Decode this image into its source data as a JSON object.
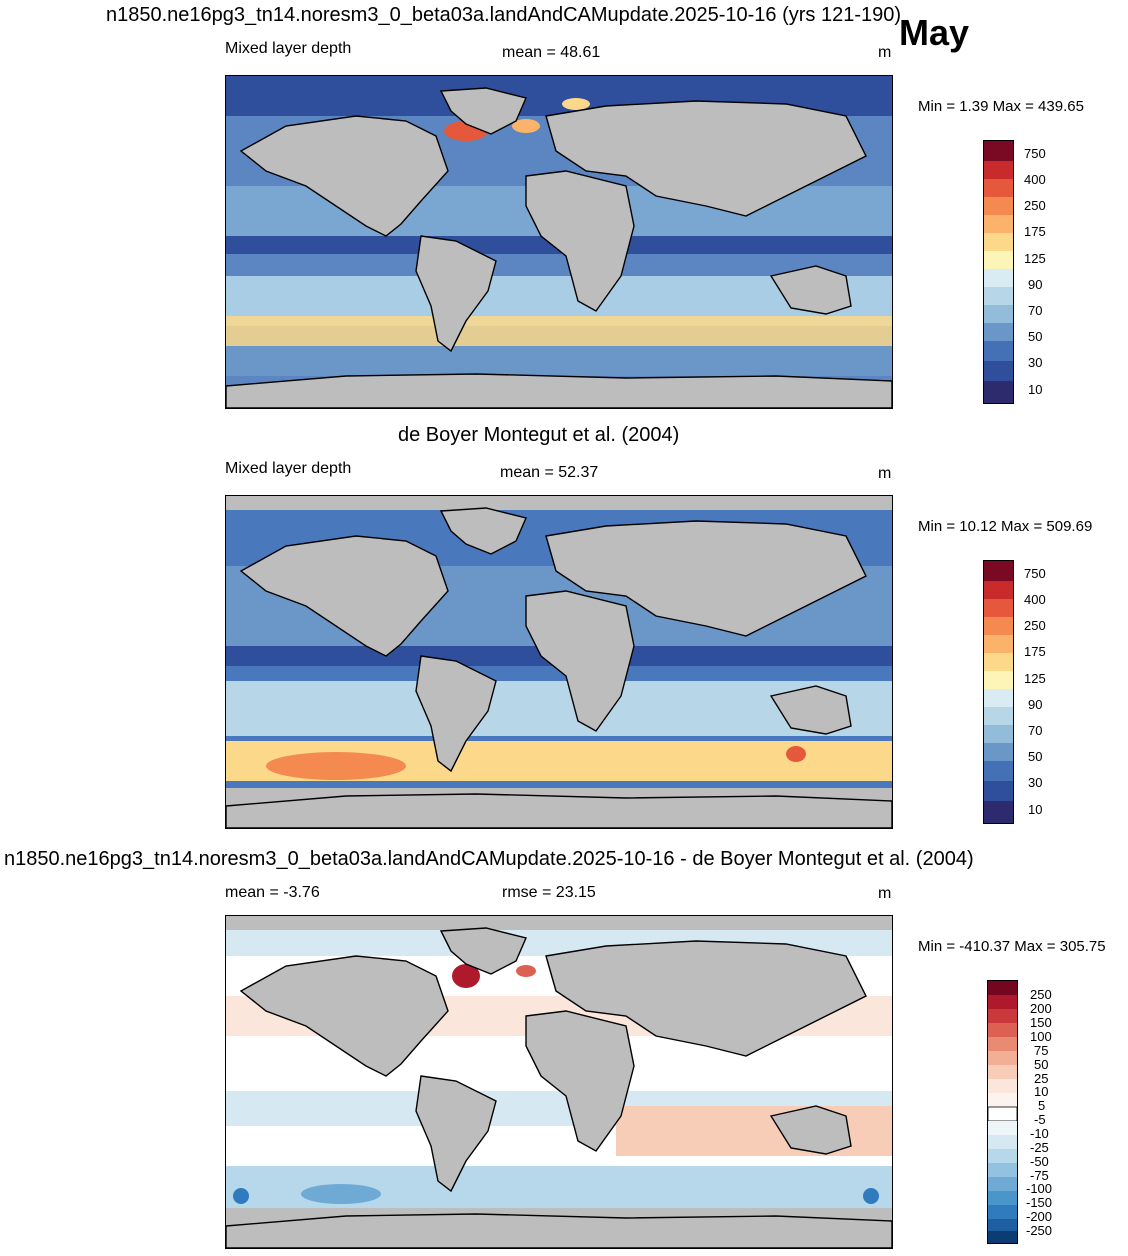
{
  "header": {
    "main_title": "n1850.ne16pg3_tn14.noresm3_0_beta03a.landAndCAMupdate.2025-10-16 (yrs 121-190)",
    "month": "May"
  },
  "panels": [
    {
      "id": "model",
      "left_label": "Mixed layer depth",
      "center_label": "mean =  48.61",
      "units": "m",
      "min_max": "Min =   1.39 Max = 439.65",
      "colorbar_labels": [
        "750",
        "400",
        "250",
        "175",
        "125",
        "90",
        "70",
        "50",
        "30",
        "10"
      ]
    },
    {
      "id": "obs",
      "title": "de Boyer Montegut et al. (2004)",
      "left_label": "Mixed layer depth",
      "center_label": "mean =  52.37",
      "units": "m",
      "min_max": "Min =  10.12 Max = 509.69",
      "colorbar_labels": [
        "750",
        "400",
        "250",
        "175",
        "125",
        "90",
        "70",
        "50",
        "30",
        "10"
      ]
    },
    {
      "id": "diff",
      "title": "n1850.ne16pg3_tn14.noresm3_0_beta03a.landAndCAMupdate.2025-10-16 - de Boyer Montegut et al. (2004)",
      "left_label": "mean =  -3.76",
      "center_label": "rmse =  23.15",
      "units": "m",
      "min_max": "Min = -410.37 Max = 305.75",
      "colorbar_labels": [
        "250",
        "200",
        "150",
        "100",
        "75",
        "50",
        "25",
        "10",
        "5",
        "-5",
        "-10",
        "-25",
        "-50",
        "-75",
        "-100",
        "-150",
        "-200",
        "-250"
      ]
    }
  ],
  "colors": {
    "land": "#bdbdbd",
    "seq_scale": [
      "#2e2a6e",
      "#2f4f9c",
      "#4470b6",
      "#6a96c8",
      "#93bcdb",
      "#b7d6e8",
      "#daecf3",
      "#fdf4b8",
      "#fcd98a",
      "#fbb26a",
      "#f48a4f",
      "#e5583b",
      "#c92a2c",
      "#7a0a24"
    ],
    "div_scale": [
      "#0b3d74",
      "#1d5fa0",
      "#2f7bbd",
      "#4a95c9",
      "#6eaad4",
      "#93c2e0",
      "#b7d7ea",
      "#d6e8f2",
      "#eef5f9",
      "#ffffff",
      "#fbe6dc",
      "#f8cdb8",
      "#f3af95",
      "#e98a72",
      "#dd6152",
      "#c9383a",
      "#ae1a2c",
      "#75061f"
    ]
  }
}
